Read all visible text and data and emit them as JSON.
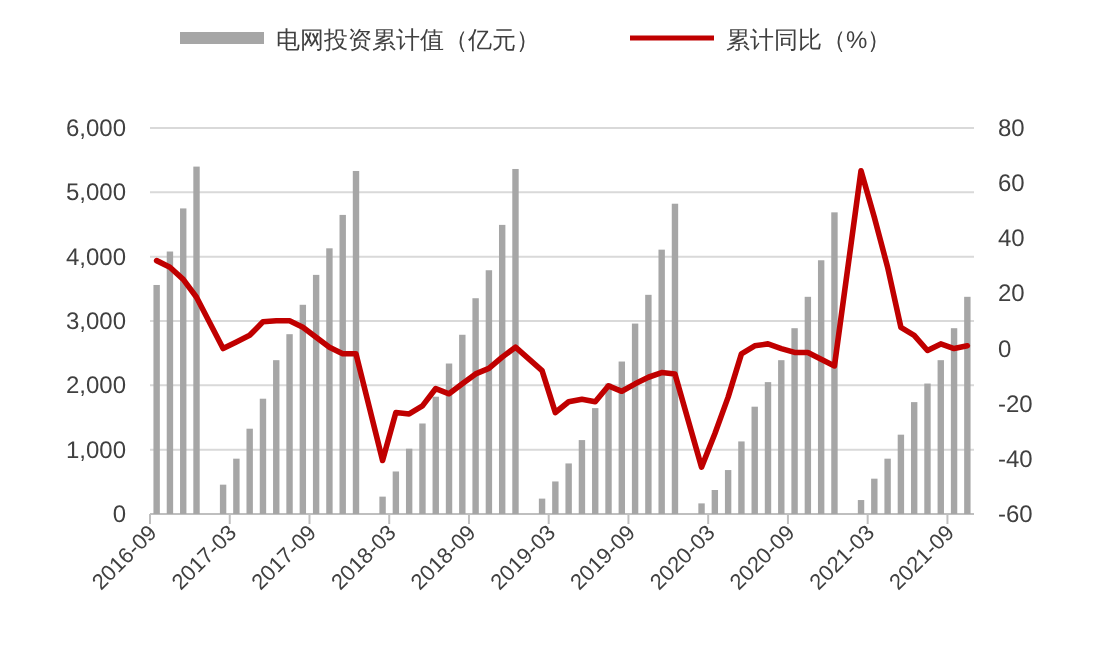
{
  "chart_data": {
    "type": "bar",
    "categories": [
      "2016-09",
      null,
      null,
      null,
      null,
      null,
      "2017-03",
      null,
      null,
      null,
      null,
      null,
      "2017-09",
      null,
      null,
      null,
      null,
      null,
      "2018-03",
      null,
      null,
      null,
      null,
      null,
      "2018-09",
      null,
      null,
      null,
      null,
      null,
      "2019-03",
      null,
      null,
      null,
      null,
      null,
      "2019-09",
      null,
      null,
      null,
      null,
      null,
      "2020-03",
      null,
      null,
      null,
      null,
      null,
      "2020-09",
      null,
      null,
      null,
      null,
      null,
      "2021-03",
      null,
      null,
      null,
      null,
      null,
      "2021-09",
      null
    ],
    "series": [
      {
        "name": "电网投资累计值（亿元）",
        "color": "#a6a6a6",
        "values": [
          3560,
          4080,
          4750,
          5400,
          null,
          456,
          860,
          1326,
          1792,
          2391,
          2795,
          3252,
          3717,
          4130,
          4649,
          5332,
          null,
          270,
          661,
          1015,
          1407,
          1823,
          2339,
          2786,
          3354,
          3789,
          4494,
          5363,
          null,
          239,
          506,
          786,
          1149,
          1646,
          2028,
          2370,
          2960,
          3407,
          4109,
          4823,
          null,
          165,
          373,
          683,
          1128,
          1668,
          2050,
          2391,
          2888,
          3376,
          3944,
          4689,
          null,
          217,
          549,
          860,
          1233,
          1739,
          2028,
          2391,
          2888,
          3376
        ]
      },
      {
        "name": "累计同比（%）",
        "type": "line",
        "axis": "y2",
        "color": "#c00000",
        "values": [
          31.9,
          29.5,
          25.1,
          18.6,
          null,
          0,
          2.4,
          4.8,
          9.7,
          10.1,
          10.1,
          7.7,
          4.1,
          0.5,
          -1.9,
          -1.9,
          null,
          -40.6,
          -23.2,
          -23.7,
          -20.8,
          -14.5,
          -16.4,
          -12.8,
          -9.2,
          -7.2,
          -3.1,
          0.5,
          null,
          -8,
          -23.2,
          -19.3,
          -18.4,
          -19.3,
          -13.5,
          -15.5,
          -12.8,
          -10.4,
          -8.7,
          -9.2,
          null,
          -43,
          -30.9,
          -17.6,
          -1.9,
          1,
          1.7,
          0,
          -1.4,
          -1.4,
          -3.9,
          -6.3,
          null,
          64.5,
          47.6,
          29.5,
          7.7,
          4.8,
          -0.7,
          1.7,
          0,
          1
        ]
      }
    ],
    "ylim": [
      0,
      6000
    ],
    "yticks": [
      0,
      {
        "value": 1000,
        "label": "1,000"
      },
      {
        "value": 2000,
        "label": "2,000"
      },
      {
        "value": 3000,
        "label": "3,000"
      },
      {
        "value": 4000,
        "label": "4,000"
      },
      {
        "value": 5000,
        "label": "5,000"
      },
      {
        "value": 6000,
        "label": "6,000"
      }
    ],
    "y2lim": [
      -60,
      80
    ],
    "y2ticks": [
      -60,
      -40,
      -20,
      0,
      20,
      40,
      60,
      80
    ],
    "grid": "y",
    "legend": "top"
  }
}
